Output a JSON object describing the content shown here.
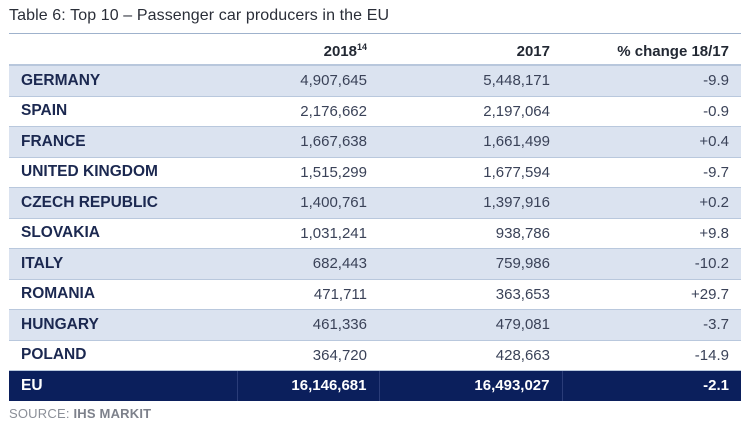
{
  "title": "Table 6: Top 10 – Passenger car producers in the EU",
  "table": {
    "headers": {
      "country": "",
      "col2018": "2018",
      "col2018_footnote": "14",
      "col2017": "2017",
      "change": "% change 18/17"
    },
    "rows": [
      {
        "country": "GERMANY",
        "v2018": "4,907,645",
        "v2017": "5,448,171",
        "change": "-9.9"
      },
      {
        "country": "SPAIN",
        "v2018": "2,176,662",
        "v2017": "2,197,064",
        "change": "-0.9"
      },
      {
        "country": "FRANCE",
        "v2018": "1,667,638",
        "v2017": "1,661,499",
        "change": "+0.4"
      },
      {
        "country": "UNITED KINGDOM",
        "v2018": "1,515,299",
        "v2017": "1,677,594",
        "change": "-9.7"
      },
      {
        "country": "CZECH REPUBLIC",
        "v2018": "1,400,761",
        "v2017": "1,397,916",
        "change": "+0.2"
      },
      {
        "country": "SLOVAKIA",
        "v2018": "1,031,241",
        "v2017": "938,786",
        "change": "+9.8"
      },
      {
        "country": "ITALY",
        "v2018": "682,443",
        "v2017": "759,986",
        "change": "-10.2"
      },
      {
        "country": "ROMANIA",
        "v2018": "471,711",
        "v2017": "363,653",
        "change": "+29.7"
      },
      {
        "country": "HUNGARY",
        "v2018": "461,336",
        "v2017": "479,081",
        "change": "-3.7"
      },
      {
        "country": "POLAND",
        "v2018": "364,720",
        "v2017": "428,663",
        "change": "-14.9"
      }
    ],
    "total": {
      "country": "EU",
      "v2018": "16,146,681",
      "v2017": "16,493,027",
      "change": "-2.1"
    }
  },
  "source": {
    "label": "SOURCE:",
    "value": "IHS MARKIT"
  },
  "colors": {
    "header_band": "#0b1f5c",
    "row_shade": "#dbe3f0",
    "text_dark_blue": "#1b2850"
  }
}
